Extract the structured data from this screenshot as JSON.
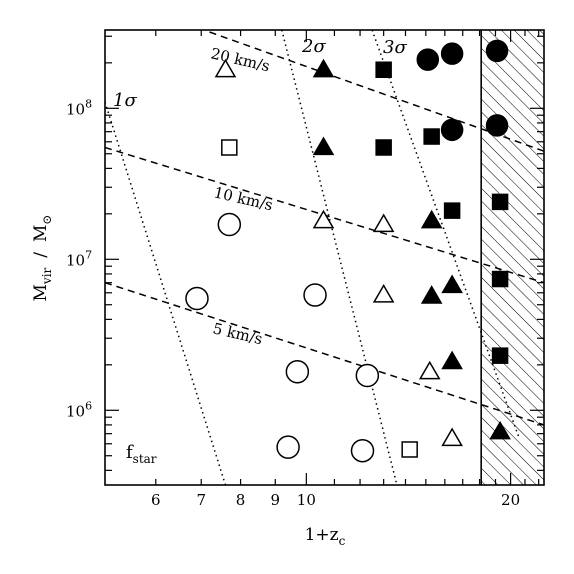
{
  "chart_data": {
    "type": "scatter",
    "title": "",
    "xlabel": "1+z",
    "xlabel_sub": "c",
    "ylabel": "M",
    "ylabel_sub": "vir",
    "ylabel_mid": "/",
    "ylabel_unit": "M",
    "ylabel_unit_sub": "⊙",
    "x_scale": "log",
    "y_scale": "log",
    "xlim": [
      5.05,
      22.4
    ],
    "ylim": [
      320000,
      330000000
    ],
    "x_ticks": [
      {
        "value": 6,
        "label": "6"
      },
      {
        "value": 7,
        "label": "7"
      },
      {
        "value": 8,
        "label": "8"
      },
      {
        "value": 9,
        "label": "9"
      },
      {
        "value": 10,
        "label": "10"
      },
      {
        "value": 20,
        "label": "20"
      }
    ],
    "y_ticks": [
      {
        "value": 1000000,
        "base": "10",
        "exp": "6"
      },
      {
        "value": 10000000,
        "base": "10",
        "exp": "7"
      },
      {
        "value": 100000000,
        "base": "10",
        "exp": "8"
      }
    ],
    "panel_label": {
      "text": "f",
      "sub": "star"
    },
    "excluded_region": {
      "x_from": 18.1,
      "x_to": 22.4,
      "style": "hatched"
    },
    "velocity_lines": [
      {
        "label": "20 km/s",
        "points": [
          [
            7.2,
            320000000
          ],
          [
            22.4,
            52000000
          ]
        ]
      },
      {
        "label": "10 km/s",
        "points": [
          [
            5.05,
            55000000
          ],
          [
            22.4,
            7000000
          ]
        ]
      },
      {
        "label": "5 km/s",
        "points": [
          [
            5.05,
            7000000
          ],
          [
            22.4,
            800000
          ]
        ]
      }
    ],
    "sigma_lines": [
      {
        "label": "1σ",
        "points": [
          [
            5.05,
            110000000
          ],
          [
            7.6,
            320000
          ]
        ]
      },
      {
        "label": "2σ",
        "points": [
          [
            9.2,
            330000000
          ],
          [
            13.6,
            320000
          ]
        ]
      },
      {
        "label": "3σ",
        "points": [
          [
            12.5,
            330000000
          ],
          [
            20.6,
            650000
          ]
        ]
      }
    ],
    "series": [
      {
        "symbol": "open-circle",
        "points": [
          [
            6.9,
            5500000
          ],
          [
            7.7,
            17000000
          ],
          [
            9.4,
            570000
          ],
          [
            9.7,
            1800000
          ],
          [
            10.3,
            5800000
          ],
          [
            12.1,
            540000
          ],
          [
            12.3,
            1700000
          ]
        ]
      },
      {
        "symbol": "open-square",
        "points": [
          [
            7.7,
            55000000
          ],
          [
            14.2,
            550000
          ]
        ]
      },
      {
        "symbol": "open-triangle",
        "points": [
          [
            7.6,
            180000000
          ],
          [
            10.6,
            18000000
          ],
          [
            13.0,
            17000000
          ],
          [
            13.0,
            5800000
          ],
          [
            15.2,
            1800000
          ],
          [
            16.4,
            650000
          ]
        ]
      },
      {
        "symbol": "filled-triangle",
        "points": [
          [
            10.6,
            180000000
          ],
          [
            10.6,
            55000000
          ],
          [
            15.3,
            18000000
          ],
          [
            15.3,
            5700000
          ],
          [
            16.4,
            6700000
          ],
          [
            16.4,
            2100000
          ],
          [
            19.3,
            720000
          ]
        ]
      },
      {
        "symbol": "filled-square",
        "points": [
          [
            13.0,
            180000000
          ],
          [
            13.0,
            55000000
          ],
          [
            15.3,
            65000000
          ],
          [
            16.4,
            21000000
          ],
          [
            19.3,
            24000000
          ],
          [
            19.3,
            7400000
          ],
          [
            19.3,
            2300000
          ]
        ]
      },
      {
        "symbol": "filled-circle",
        "points": [
          [
            15.1,
            210000000
          ],
          [
            16.4,
            230000000
          ],
          [
            19.1,
            240000000
          ],
          [
            16.4,
            72000000
          ],
          [
            19.1,
            77000000
          ]
        ]
      }
    ]
  }
}
